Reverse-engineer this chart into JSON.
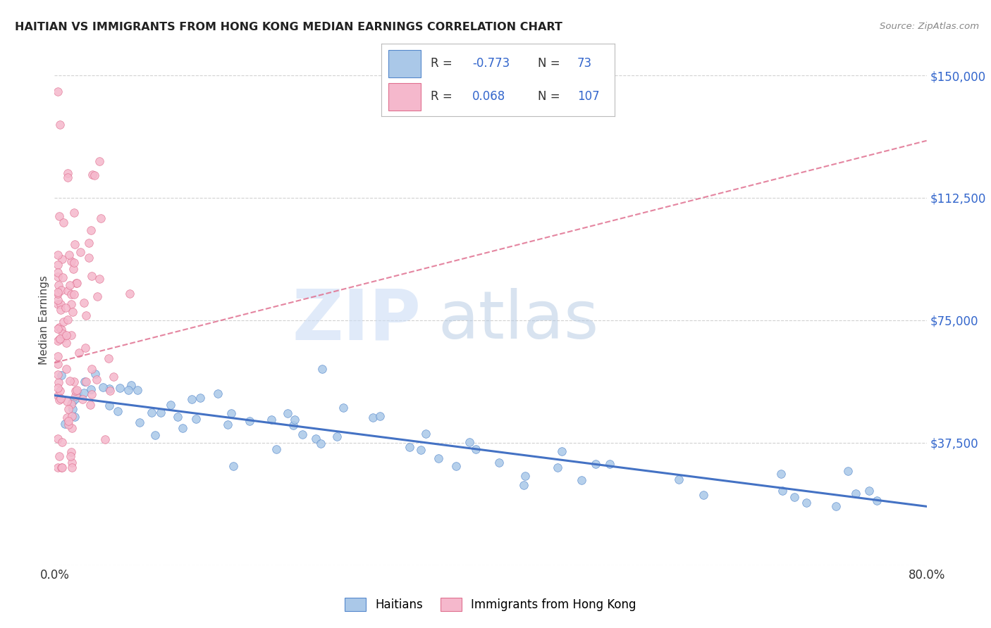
{
  "title": "HAITIAN VS IMMIGRANTS FROM HONG KONG MEDIAN EARNINGS CORRELATION CHART",
  "source": "Source: ZipAtlas.com",
  "ylabel": "Median Earnings",
  "xlim": [
    0.0,
    0.8
  ],
  "ylim": [
    0,
    150000
  ],
  "yticks": [
    0,
    37500,
    75000,
    112500,
    150000
  ],
  "ytick_labels": [
    "",
    "$37,500",
    "$75,000",
    "$112,500",
    "$150,000"
  ],
  "xtick_positions": [
    0.0,
    0.2,
    0.4,
    0.6,
    0.8
  ],
  "xtick_labels": [
    "0.0%",
    "",
    "",
    "",
    "80.0%"
  ],
  "blue_R": -0.773,
  "blue_N": 73,
  "pink_R": 0.068,
  "pink_N": 107,
  "blue_face_color": "#aac8e8",
  "blue_edge_color": "#5588cc",
  "pink_face_color": "#f5b8cc",
  "pink_edge_color": "#e07090",
  "blue_line_color": "#4472c4",
  "pink_line_color": "#e07090",
  "legend_label_blue": "Haitians",
  "legend_label_pink": "Immigrants from Hong Kong",
  "watermark_text": "ZIPatlas",
  "background_color": "#ffffff",
  "title_color": "#222222",
  "source_color": "#888888",
  "label_color": "#3366cc",
  "grid_color": "#cccccc",
  "blue_line_y0": 52000,
  "blue_line_y1": 18000,
  "pink_line_y0": 62000,
  "pink_line_y1": 130000
}
